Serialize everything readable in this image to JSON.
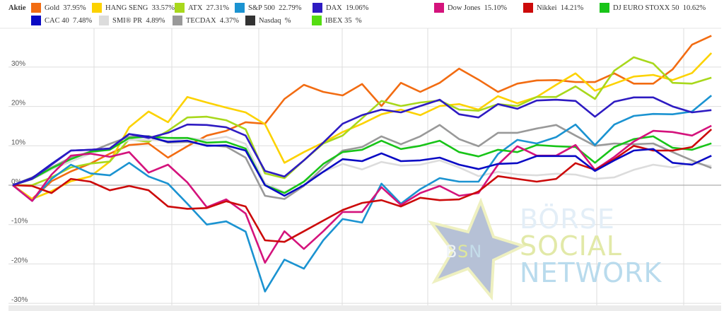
{
  "legend": {
    "title": "Aktie",
    "items": [
      {
        "name": "Gold",
        "value": "37.95%",
        "color": "#f26c12"
      },
      {
        "name": "HANG SENG",
        "value": "33.57%",
        "color": "#fcd200"
      },
      {
        "name": "ATX",
        "value": "27.31%",
        "color": "#a8d81c"
      },
      {
        "name": "S&P 500",
        "value": "22.79%",
        "color": "#1b93d1"
      },
      {
        "name": "DAX",
        "value": "19.06%",
        "color": "#2e1bc2"
      },
      {
        "name": "Dow Jones",
        "value": "15.10%",
        "color": "#d4137c"
      },
      {
        "name": "Nikkei",
        "value": "14.21%",
        "color": "#cc0a0a"
      },
      {
        "name": "DJ EURO STOXX 50",
        "value": "10.62%",
        "color": "#18c418"
      },
      {
        "name": "CAC 40",
        "value": "7.48%",
        "color": "#0a0ac4"
      },
      {
        "name": "SMI® PR",
        "value": "4.89%",
        "color": "#dcdcdc"
      },
      {
        "name": "TECDAX",
        "value": "4.37%",
        "color": "#999999"
      },
      {
        "name": "Nasdaq",
        "value": "%",
        "color": "#333333"
      },
      {
        "name": "IBEX 35",
        "value": "%",
        "color": "#55dd11"
      }
    ]
  },
  "watermark": {
    "star_text": "BSN",
    "line1": "BÖRSE",
    "line2": "SOCIAL",
    "line3": "NETWORK"
  },
  "chart_data": {
    "type": "line",
    "title": "",
    "xlabel": "",
    "ylabel": "",
    "ylim": [
      -30,
      40
    ],
    "yticks": [
      30,
      20,
      10,
      0,
      -10,
      -20,
      -30
    ],
    "ytick_labels": [
      "30%",
      "20%",
      "10%",
      "0%",
      "-10%",
      "-20%",
      "-30%"
    ],
    "grid": true,
    "legend_position": "top",
    "x": [
      0,
      1,
      2,
      3,
      4,
      5,
      6,
      7,
      8,
      9,
      10,
      11,
      12,
      13,
      14,
      15,
      16,
      17,
      18,
      19,
      20,
      21,
      22,
      23,
      24,
      25,
      26,
      27,
      28,
      29,
      30,
      31,
      32,
      33,
      34,
      35,
      36
    ],
    "series": [
      {
        "name": "Gold",
        "color": "#f26c12",
        "values": [
          0,
          -3.5,
          1,
          3.5,
          5.5,
          8,
          10.2,
          10.6,
          7,
          9.9,
          12.6,
          13.8,
          16,
          15.6,
          21.9,
          25.5,
          23.7,
          22.8,
          25.7,
          20.1,
          26,
          23.7,
          26,
          29.6,
          26.8,
          23.7,
          25.8,
          26.6,
          26.7,
          26.2,
          26.2,
          28.4,
          25.8,
          25.8,
          29.4,
          35.7,
          37.95
        ]
      },
      {
        "name": "HANG SENG",
        "color": "#fcd200",
        "values": [
          0,
          -3.5,
          -1.5,
          1,
          2.2,
          6,
          14.7,
          18.7,
          16,
          22.4,
          21,
          19.7,
          18.5,
          15.5,
          5.7,
          8.4,
          10.8,
          13.5,
          15.6,
          18,
          19.2,
          17.8,
          20.1,
          20.6,
          19.2,
          22.6,
          20.8,
          22.4,
          25.5,
          28.4,
          24,
          25.8,
          27.6,
          28,
          26.7,
          28.5,
          33.57
        ]
      },
      {
        "name": "ATX",
        "color": "#a8d81c",
        "values": [
          0,
          0,
          2,
          4.5,
          5.5,
          6,
          11.7,
          11,
          13.8,
          17.2,
          17.4,
          16.5,
          14.2,
          3,
          1.8,
          6.3,
          10.6,
          12.6,
          17,
          21.4,
          20.1,
          21,
          21.5,
          19.2,
          18.9,
          20.6,
          20.1,
          22.4,
          22.4,
          25.1,
          21.9,
          29.1,
          32.5,
          30.9,
          26,
          25.8,
          27.31
        ]
      },
      {
        "name": "SMI® PR",
        "color": "#dcdcdc",
        "values": [
          0,
          1.5,
          4,
          6,
          8,
          9.5,
          11.5,
          11.5,
          11.3,
          12,
          11.5,
          12.3,
          10.5,
          0.5,
          -1.8,
          0.9,
          3.4,
          5.4,
          4,
          5.9,
          5,
          5.2,
          6.3,
          4.5,
          2.3,
          3.4,
          2.7,
          2.5,
          2.9,
          2.7,
          1.6,
          2,
          3.9,
          5.2,
          4.5,
          5.7,
          4.89
        ]
      },
      {
        "name": "TECDAX",
        "color": "#999999",
        "values": [
          0,
          2,
          4.5,
          7,
          8.5,
          10.5,
          12.3,
          12.5,
          10.8,
          11,
          10.2,
          9.8,
          7,
          -2.7,
          -3.5,
          -0.2,
          4.5,
          8.8,
          9.7,
          12.4,
          10.4,
          12.4,
          15.3,
          11.7,
          9.9,
          13.3,
          13.3,
          14.4,
          15.3,
          12.6,
          10,
          10.6,
          10.4,
          10.6,
          8.4,
          6.3,
          4.37
        ]
      },
      {
        "name": "S&P 500",
        "color": "#1b93d1",
        "values": [
          0,
          -4,
          1.6,
          5.2,
          3,
          2.5,
          5.7,
          2.2,
          0.4,
          -4.7,
          -10,
          -9.2,
          -11.8,
          -27,
          -18.9,
          -21.2,
          -14,
          -8.6,
          -9.5,
          0.4,
          -4.7,
          -1,
          1.8,
          0.9,
          0.9,
          7.9,
          11.5,
          10.6,
          12.2,
          15.4,
          10.2,
          15.4,
          17.6,
          18.1,
          18,
          18.7,
          22.79
        ]
      },
      {
        "name": "DJ EURO STOXX 50",
        "color": "#18c418",
        "values": [
          0,
          1.6,
          4.3,
          6.6,
          8.5,
          9,
          12,
          12.3,
          12,
          12,
          10.8,
          11,
          9.3,
          0,
          -2,
          0.9,
          5.4,
          8.4,
          9,
          11.3,
          9.2,
          10,
          11.3,
          8.4,
          7.3,
          9,
          8.4,
          10.2,
          9.9,
          9.7,
          5.7,
          9.7,
          11.7,
          12.4,
          9.5,
          9,
          10.62
        ]
      },
      {
        "name": "Dow Jones",
        "color": "#d4137c",
        "values": [
          0,
          -4,
          2.7,
          7.5,
          8,
          7.2,
          8.4,
          3.2,
          5.2,
          0.7,
          -5.6,
          -3.6,
          -7.2,
          -19.7,
          -11.7,
          -16.2,
          -11.7,
          -6.8,
          -6.8,
          -0.5,
          -5,
          -2,
          -0.2,
          -2.7,
          -2,
          5.2,
          9.9,
          7.5,
          7.5,
          10.2,
          3.9,
          7.2,
          11.1,
          13.8,
          13.5,
          12.6,
          15.1
        ]
      },
      {
        "name": "Nikkei",
        "color": "#cc0a0a",
        "values": [
          0,
          -0.2,
          -2,
          1.6,
          0.9,
          -1.3,
          -0.2,
          -1.3,
          -5.4,
          -6,
          -5.8,
          -4.1,
          -5.4,
          -14,
          -14.4,
          -11.7,
          -9,
          -6.3,
          -4.5,
          -3.8,
          -5.4,
          -3.2,
          -3.8,
          -3.6,
          -1.6,
          2.3,
          1.6,
          0.9,
          1.6,
          5.6,
          3.9,
          6.6,
          10,
          8.8,
          8.8,
          9.7,
          14.21
        ]
      },
      {
        "name": "CAC 40",
        "color": "#0a0ac4",
        "values": [
          0,
          1.8,
          5.4,
          8.8,
          9,
          9.3,
          13,
          12.3,
          11,
          11.3,
          10,
          10.1,
          8.8,
          0,
          -2.7,
          0,
          3.4,
          6.6,
          6.1,
          8.1,
          6.1,
          6.3,
          7,
          5.2,
          4.1,
          5.4,
          5.6,
          7.4,
          7.4,
          7.4,
          3.6,
          6.3,
          8.8,
          9.2,
          5.7,
          5.2,
          7.48
        ]
      },
      {
        "name": "DAX",
        "color": "#2e1bc2",
        "values": [
          0,
          1.6,
          5.2,
          8.8,
          9,
          9.3,
          13,
          12,
          13.3,
          15.4,
          15.3,
          14.7,
          12.6,
          3.6,
          2.2,
          6.3,
          10.8,
          15.6,
          17.8,
          19.2,
          18.5,
          20.1,
          21.7,
          18,
          17.2,
          20.6,
          19.4,
          21.5,
          21.7,
          21.4,
          17.4,
          21.2,
          22.3,
          22.3,
          20,
          18.5,
          19.06
        ]
      }
    ]
  }
}
